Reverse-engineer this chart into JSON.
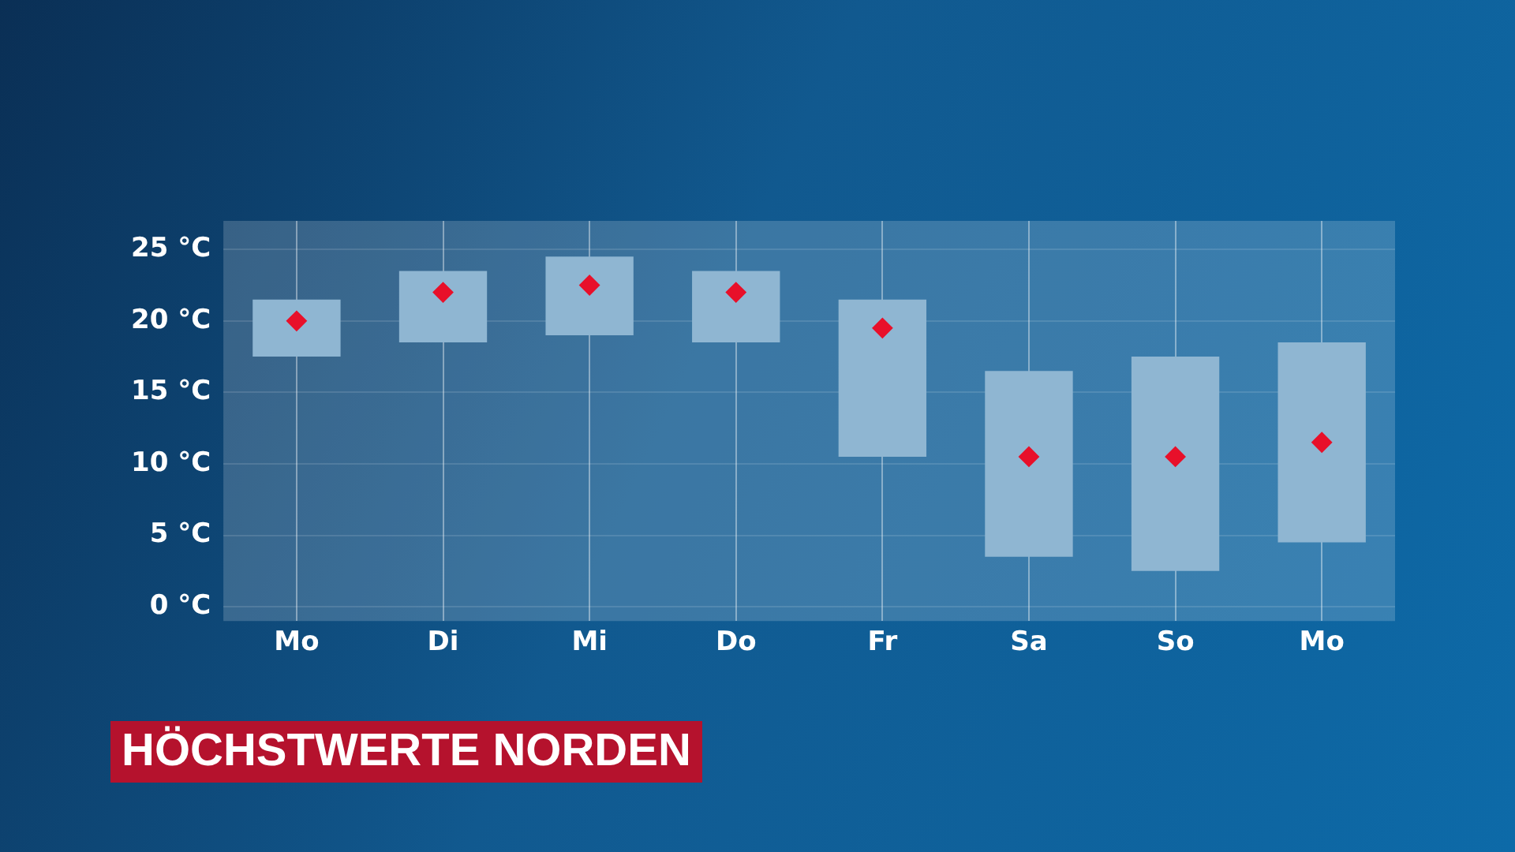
{
  "chart_data": {
    "type": "bar",
    "title": "HÖCHSTWERTE NORDEN",
    "categories": [
      "Mo",
      "Di",
      "Mi",
      "Do",
      "Fr",
      "Sa",
      "So",
      "Mo"
    ],
    "ylim": [
      -1,
      27
    ],
    "yticks": [
      {
        "value": 0,
        "label": "0 °C"
      },
      {
        "value": 5,
        "label": "5 °C"
      },
      {
        "value": 10,
        "label": "10 °C"
      },
      {
        "value": 15,
        "label": "15 °C"
      },
      {
        "value": 20,
        "label": "20 °C"
      },
      {
        "value": 25,
        "label": "25 °C"
      }
    ],
    "grid": true,
    "legend": false,
    "series": [
      {
        "color": "#8fb6d2",
        "base": [
          17.5,
          18.5,
          19,
          18.5,
          10.5,
          3.5,
          2.5,
          4.5
        ],
        "values": [
          4,
          5,
          5.5,
          5,
          11,
          13,
          15,
          14
        ]
      },
      {
        "type": "scatter",
        "color": "#e8102a",
        "marker": "diamond",
        "values": [
          20,
          22,
          22.5,
          22,
          19.5,
          10.5,
          10.5,
          11.5
        ]
      }
    ]
  }
}
